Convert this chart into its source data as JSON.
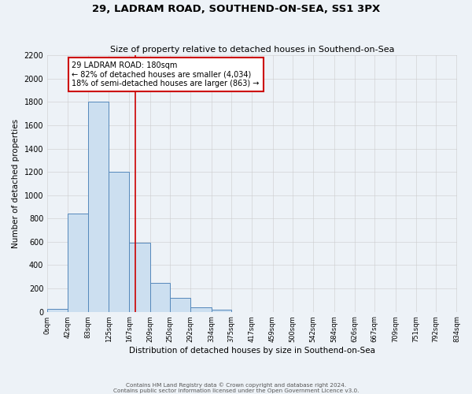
{
  "title": "29, LADRAM ROAD, SOUTHEND-ON-SEA, SS1 3PX",
  "subtitle": "Size of property relative to detached houses in Southend-on-Sea",
  "xlabel": "Distribution of detached houses by size in Southend-on-Sea",
  "ylabel": "Number of detached properties",
  "bin_edges": [
    0,
    42,
    83,
    125,
    167,
    209,
    250,
    292,
    334,
    375,
    417,
    459,
    500,
    542,
    584,
    626,
    667,
    709,
    751,
    792,
    834
  ],
  "bin_labels": [
    "0sqm",
    "42sqm",
    "83sqm",
    "125sqm",
    "167sqm",
    "209sqm",
    "250sqm",
    "292sqm",
    "334sqm",
    "375sqm",
    "417sqm",
    "459sqm",
    "500sqm",
    "542sqm",
    "584sqm",
    "626sqm",
    "667sqm",
    "709sqm",
    "751sqm",
    "792sqm",
    "834sqm"
  ],
  "bar_heights": [
    25,
    840,
    1800,
    1200,
    590,
    250,
    120,
    40,
    20,
    0,
    0,
    0,
    0,
    0,
    0,
    0,
    0,
    0,
    0,
    0
  ],
  "bar_color": "#ccdff0",
  "bar_edge_color": "#5588bb",
  "vline_x": 180,
  "vline_color": "#cc0000",
  "ylim": [
    0,
    2200
  ],
  "yticks": [
    0,
    200,
    400,
    600,
    800,
    1000,
    1200,
    1400,
    1600,
    1800,
    2000,
    2200
  ],
  "annotation_text": "29 LADRAM ROAD: 180sqm\n← 82% of detached houses are smaller (4,034)\n18% of semi-detached houses are larger (863) →",
  "annotation_box_facecolor": "#ffffff",
  "annotation_box_edgecolor": "#cc0000",
  "footer_line1": "Contains HM Land Registry data © Crown copyright and database right 2024.",
  "footer_line2": "Contains public sector information licensed under the Open Government Licence v3.0.",
  "grid_color": "#cccccc",
  "background_color": "#edf2f7"
}
